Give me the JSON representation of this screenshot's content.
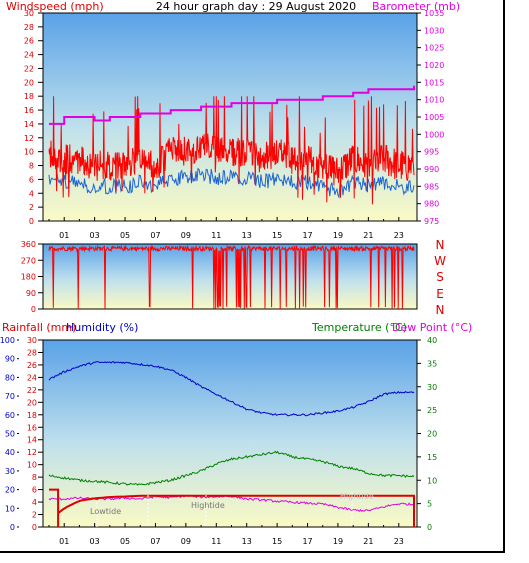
{
  "header": {
    "title": "24 hour graph day : 29 August 2020",
    "left_label": "Windspeed (mph)",
    "right_label": "Barometer (mb)"
  },
  "direction_letters": [
    "N",
    "W",
    "S",
    "E",
    "N"
  ],
  "bottom_labels": {
    "rainfall": "Rainfall (mm)",
    "humidity": "Humidity (%)",
    "temperature": "Temperature (°C)",
    "dewpoint": "Dew Point (°C)",
    "lowtide": "Lowtide",
    "hightide": "Hightide",
    "hightide2": "Hightide"
  },
  "colors": {
    "wind": "#ff0000",
    "gust": "#1e64d2",
    "barometer": "#e000e0",
    "humidity": "#0000c8",
    "temperature": "#008000",
    "dewpoint": "#e000e0",
    "rain": "#dd0000"
  },
  "chart_data": [
    {
      "type": "line",
      "name": "wind-barometer",
      "xticks": [
        "01",
        "03",
        "05",
        "07",
        "09",
        "11",
        "13",
        "15",
        "17",
        "19",
        "21",
        "23"
      ],
      "wind_axis": {
        "ylim": [
          0,
          30
        ],
        "ticks": [
          "0",
          "2",
          "4",
          "6",
          "8",
          "10",
          "12",
          "14",
          "16",
          "18",
          "20",
          "22",
          "24",
          "26",
          "28",
          "30"
        ]
      },
      "baro_axis": {
        "ylim": [
          975,
          1035
        ],
        "ticks": [
          "975",
          "980",
          "985",
          "990",
          "995",
          "1000",
          "1005",
          "1010",
          "1015",
          "1020",
          "1025",
          "1030",
          "1035"
        ]
      },
      "series": [
        {
          "name": "Windspeed",
          "x": [
            0,
            1,
            2,
            3,
            4,
            5,
            6,
            7,
            8,
            9,
            10,
            11,
            12,
            13,
            14,
            15,
            16,
            17,
            18,
            19,
            20,
            21,
            22,
            23,
            24
          ],
          "y": [
            10,
            9,
            9,
            8,
            8,
            8,
            9,
            8,
            10,
            10,
            11,
            10,
            10,
            10,
            9,
            10,
            9,
            9,
            8,
            7,
            9,
            8,
            9,
            8,
            8
          ]
        },
        {
          "name": "Barometer",
          "x": [
            0,
            1,
            2,
            3,
            4,
            5,
            6,
            7,
            8,
            9,
            10,
            11,
            12,
            13,
            14,
            15,
            16,
            17,
            18,
            19,
            20,
            21,
            22,
            23,
            24
          ],
          "y": [
            1003,
            1005,
            1005,
            1004,
            1005,
            1005,
            1006,
            1006,
            1007,
            1007,
            1008,
            1008,
            1009,
            1009,
            1009,
            1010,
            1010,
            1010,
            1011,
            1011,
            1012,
            1013,
            1013,
            1013,
            1014
          ]
        }
      ]
    },
    {
      "type": "line",
      "name": "wind-direction",
      "ylim": [
        0,
        360
      ],
      "yticks": [
        "0",
        "90",
        "180",
        "270",
        "360"
      ]
    },
    {
      "type": "line",
      "name": "rain-humidity-temperature",
      "humidity_axis": {
        "ylim": [
          0,
          100
        ],
        "ticks": [
          "0",
          "10",
          "20",
          "30",
          "40",
          "50",
          "60",
          "70",
          "80",
          "90",
          "100"
        ]
      },
      "rain_axis": {
        "ylim": [
          0,
          30
        ],
        "ticks": [
          "0",
          "2",
          "4",
          "6",
          "8",
          "10",
          "12",
          "14",
          "16",
          "18",
          "20",
          "22",
          "24",
          "26",
          "28",
          "30"
        ]
      },
      "temp_axis": {
        "ylim": [
          0,
          40
        ],
        "ticks": [
          "0",
          "5",
          "10",
          "15",
          "20",
          "25",
          "30",
          "35",
          "40"
        ]
      },
      "xticks": [
        "01",
        "03",
        "05",
        "07",
        "09",
        "11",
        "13",
        "15",
        "17",
        "19",
        "21",
        "23"
      ],
      "series": [
        {
          "name": "Humidity",
          "x": [
            0,
            1,
            2,
            3,
            4,
            5,
            6,
            7,
            8,
            9,
            10,
            11,
            12,
            13,
            14,
            15,
            16,
            17,
            18,
            19,
            20,
            21,
            22,
            23,
            24
          ],
          "y": [
            79,
            83,
            86,
            88,
            88,
            88,
            87,
            86,
            84,
            80,
            75,
            71,
            67,
            63,
            61,
            60,
            60,
            60,
            61,
            62,
            64,
            67,
            71,
            72,
            72
          ]
        },
        {
          "name": "Temperature",
          "x": [
            0,
            1,
            2,
            3,
            4,
            5,
            6,
            7,
            8,
            9,
            10,
            11,
            12,
            13,
            14,
            15,
            16,
            17,
            18,
            19,
            20,
            21,
            22,
            23,
            24
          ],
          "y": [
            11,
            10.5,
            10,
            9.8,
            9.5,
            9.2,
            9,
            9.5,
            10,
            11,
            12,
            13.5,
            14.5,
            15,
            15.5,
            16,
            15,
            14.5,
            14,
            13,
            12.5,
            11.5,
            11,
            11,
            10.8
          ]
        },
        {
          "name": "Dew Point",
          "x": [
            0,
            1,
            2,
            3,
            4,
            5,
            6,
            7,
            8,
            9,
            10,
            11,
            12,
            13,
            14,
            15,
            16,
            17,
            18,
            19,
            20,
            21,
            22,
            23,
            24
          ],
          "y": [
            6,
            6,
            6.2,
            6,
            6,
            6.2,
            6,
            6.5,
            6.3,
            6.7,
            6.4,
            6.5,
            6.6,
            6,
            5.8,
            5.5,
            5.3,
            5.1,
            4.9,
            4.2,
            3.6,
            3.5,
            4.3,
            5,
            4.8
          ]
        },
        {
          "name": "Rainfall",
          "x": [
            0,
            0.5,
            1,
            2,
            3,
            4,
            5,
            6,
            8,
            12,
            24
          ],
          "y": [
            0,
            2,
            3,
            4.2,
            4.6,
            4.8,
            4.9,
            5,
            5,
            5,
            5
          ]
        }
      ]
    }
  ]
}
